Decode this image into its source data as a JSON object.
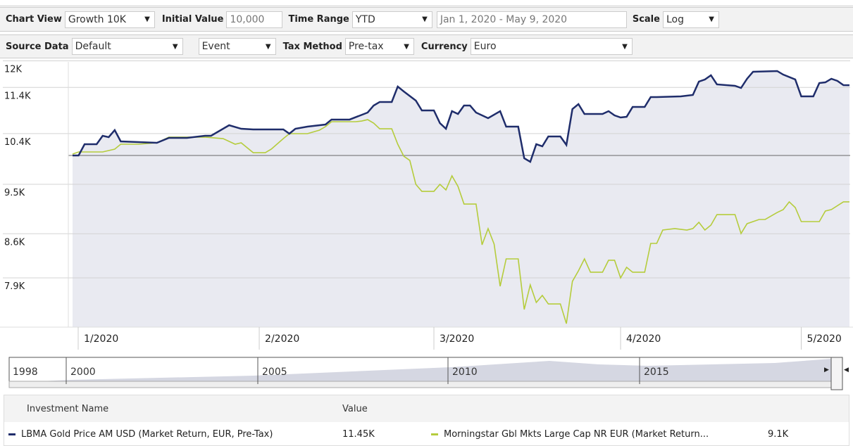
{
  "toolbar": {
    "chart_view_label": "Chart View",
    "chart_view_value": "Growth 10K",
    "initial_value_label": "Initial Value",
    "initial_value": "10,000",
    "time_range_label": "Time Range",
    "time_range_value": "YTD",
    "date_range": "Jan 1, 2020 - May 9, 2020",
    "scale_label": "Scale",
    "scale_value": "Log",
    "source_data_label": "Source Data",
    "source_data_value": "Default",
    "event_value": "Event",
    "tax_method_label": "Tax Method",
    "tax_method_value": "Pre-tax",
    "currency_label": "Currency",
    "currency_value": "Euro"
  },
  "navigator": {
    "years": [
      "1998",
      "2000",
      "2005",
      "2010",
      "2015"
    ]
  },
  "legend": {
    "col_name": "Investment Name",
    "col_value": "Value",
    "items": [
      {
        "name": "LBMA Gold Price AM USD (Market Return, EUR, Pre-Tax)",
        "value": "11.45K",
        "color": "#1f2d6b"
      },
      {
        "name": "Morningstar Gbl Mkts Large Cap NR EUR (Market Return...",
        "value": "9.1K",
        "color": "#b5cc3c"
      }
    ]
  },
  "chart_data": {
    "type": "line",
    "scale": "log",
    "x_unit": "days since Jan 1, 2020",
    "xlim": [
      0,
      129
    ],
    "ylim": [
      7200,
      12100
    ],
    "baseline": 10000,
    "y_ticks": [
      {
        "value": 12000,
        "label": "12K"
      },
      {
        "value": 11400,
        "label": "11.4K"
      },
      {
        "value": 10430,
        "label": "10.4K"
      },
      {
        "value": 9460,
        "label": "9.5K"
      },
      {
        "value": 8600,
        "label": "8.6K"
      },
      {
        "value": 7900,
        "label": "7.9K"
      }
    ],
    "x_ticks": [
      {
        "day": 0,
        "label": "1/2020"
      },
      {
        "day": 31,
        "label": "2/2020"
      },
      {
        "day": 60,
        "label": "3/2020"
      },
      {
        "day": 91,
        "label": "4/2020"
      },
      {
        "day": 121,
        "label": "5/2020"
      }
    ],
    "series": [
      {
        "name": "LBMA Gold Price AM USD (Market Return, EUR, Pre-Tax)",
        "color": "#1f2d6b",
        "points": [
          [
            0,
            10000
          ],
          [
            1,
            10000
          ],
          [
            2,
            10219
          ],
          [
            4,
            10219
          ],
          [
            5,
            10387
          ],
          [
            6,
            10359
          ],
          [
            7,
            10500
          ],
          [
            8,
            10275
          ],
          [
            11,
            10261
          ],
          [
            14,
            10247
          ],
          [
            16,
            10345
          ],
          [
            19,
            10345
          ],
          [
            22,
            10387
          ],
          [
            23,
            10387
          ],
          [
            26,
            10600
          ],
          [
            28,
            10528
          ],
          [
            30,
            10514
          ],
          [
            35,
            10514
          ],
          [
            36,
            10429
          ],
          [
            37,
            10528
          ],
          [
            39,
            10571
          ],
          [
            42,
            10614
          ],
          [
            43,
            10716
          ],
          [
            46,
            10716
          ],
          [
            49,
            10862
          ],
          [
            50,
            11010
          ],
          [
            51,
            11085
          ],
          [
            53,
            11085
          ],
          [
            54,
            11420
          ],
          [
            55,
            11312
          ],
          [
            57,
            11115
          ],
          [
            58,
            10906
          ],
          [
            60,
            10906
          ],
          [
            61,
            10643
          ],
          [
            62,
            10528
          ],
          [
            63,
            10891
          ],
          [
            64,
            10832
          ],
          [
            65,
            11010
          ],
          [
            66,
            11010
          ],
          [
            67,
            10862
          ],
          [
            69,
            10745
          ],
          [
            71,
            10891
          ],
          [
            72,
            10571
          ],
          [
            74,
            10571
          ],
          [
            75,
            9946
          ],
          [
            76,
            9879
          ],
          [
            77,
            10219
          ],
          [
            78,
            10178
          ],
          [
            79,
            10373
          ],
          [
            81,
            10373
          ],
          [
            82,
            10205
          ],
          [
            83,
            10935
          ],
          [
            84,
            11040
          ],
          [
            85,
            10832
          ],
          [
            88,
            10832
          ],
          [
            89,
            10891
          ],
          [
            90,
            10803
          ],
          [
            91,
            10759
          ],
          [
            92,
            10773
          ],
          [
            93,
            10980
          ],
          [
            95,
            10980
          ],
          [
            96,
            11190
          ],
          [
            97,
            11190
          ],
          [
            101,
            11205
          ],
          [
            103,
            11236
          ],
          [
            104,
            11529
          ],
          [
            105,
            11576
          ],
          [
            106,
            11671
          ],
          [
            107,
            11467
          ],
          [
            110,
            11436
          ],
          [
            111,
            11389
          ],
          [
            112,
            11592
          ],
          [
            113,
            11750
          ],
          [
            117,
            11766
          ],
          [
            118,
            11686
          ],
          [
            120,
            11576
          ],
          [
            121,
            11205
          ],
          [
            123,
            11205
          ],
          [
            124,
            11498
          ],
          [
            125,
            11513
          ],
          [
            126,
            11592
          ],
          [
            127,
            11545
          ],
          [
            128,
            11451
          ],
          [
            129,
            11450
          ]
        ]
      },
      {
        "name": "Morningstar Gbl Mkts Large Cap NR EUR (Market Return...",
        "color": "#b5cc3c",
        "points": [
          [
            0,
            10027
          ],
          [
            1,
            10068
          ],
          [
            5,
            10068
          ],
          [
            7,
            10123
          ],
          [
            8,
            10219
          ],
          [
            11,
            10219
          ],
          [
            14,
            10247
          ],
          [
            16,
            10359
          ],
          [
            22,
            10359
          ],
          [
            25,
            10330
          ],
          [
            27,
            10219
          ],
          [
            28,
            10247
          ],
          [
            30,
            10054
          ],
          [
            32,
            10054
          ],
          [
            33,
            10123
          ],
          [
            35,
            10330
          ],
          [
            36,
            10429
          ],
          [
            39,
            10429
          ],
          [
            41,
            10500
          ],
          [
            42,
            10571
          ],
          [
            43,
            10672
          ],
          [
            47,
            10672
          ],
          [
            48,
            10686
          ],
          [
            49,
            10715
          ],
          [
            50,
            10643
          ],
          [
            51,
            10528
          ],
          [
            53,
            10528
          ],
          [
            54,
            10219
          ],
          [
            55,
            9986
          ],
          [
            56,
            9905
          ],
          [
            57,
            9459
          ],
          [
            58,
            9332
          ],
          [
            60,
            9332
          ],
          [
            61,
            9459
          ],
          [
            62,
            9358
          ],
          [
            63,
            9615
          ],
          [
            64,
            9421
          ],
          [
            65,
            9107
          ],
          [
            67,
            9107
          ],
          [
            68,
            8419
          ],
          [
            69,
            8686
          ],
          [
            70,
            8431
          ],
          [
            71,
            7773
          ],
          [
            72,
            8194
          ],
          [
            74,
            8194
          ],
          [
            75,
            7433
          ],
          [
            76,
            7794
          ],
          [
            77,
            7534
          ],
          [
            78,
            7637
          ],
          [
            79,
            7513
          ],
          [
            81,
            7513
          ],
          [
            82,
            7233
          ],
          [
            83,
            7847
          ],
          [
            84,
            8007
          ],
          [
            85,
            8194
          ],
          [
            86,
            7986
          ],
          [
            88,
            7986
          ],
          [
            89,
            8172
          ],
          [
            90,
            8172
          ],
          [
            91,
            7899
          ],
          [
            92,
            8062
          ],
          [
            93,
            7986
          ],
          [
            95,
            7986
          ],
          [
            96,
            8442
          ],
          [
            97,
            8442
          ],
          [
            98,
            8662
          ],
          [
            100,
            8686
          ],
          [
            102,
            8662
          ],
          [
            103,
            8686
          ],
          [
            104,
            8792
          ],
          [
            105,
            8662
          ],
          [
            106,
            8745
          ],
          [
            107,
            8924
          ],
          [
            110,
            8924
          ],
          [
            111,
            8604
          ],
          [
            112,
            8769
          ],
          [
            114,
            8840
          ],
          [
            115,
            8840
          ],
          [
            117,
            8960
          ],
          [
            118,
            9010
          ],
          [
            119,
            9145
          ],
          [
            120,
            9046
          ],
          [
            121,
            8804
          ],
          [
            124,
            8804
          ],
          [
            125,
            8985
          ],
          [
            126,
            9010
          ],
          [
            128,
            9145
          ],
          [
            129,
            9145
          ]
        ]
      }
    ]
  }
}
